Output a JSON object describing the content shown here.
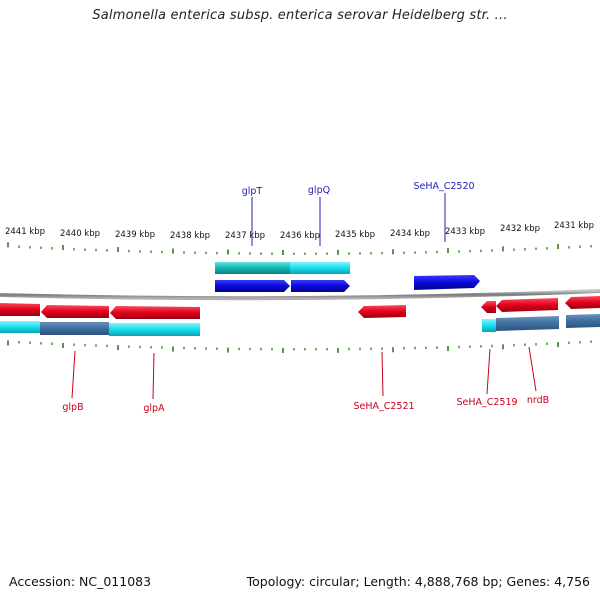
{
  "header": {
    "title": "Salmonella enterica subsp. enterica serovar Heidelberg str. ..."
  },
  "footer": {
    "accession": "Accession: NC_011083",
    "summary": "Topology: circular; Length: 4,888,768 bp; Genes: 4,756"
  },
  "colors": {
    "backbone": "#8c8c8c",
    "tick": "#2e7d1c",
    "forward_gene": "#0a0ad8",
    "forward_feature": "#16c4c4",
    "reverse_gene": "#e0001c",
    "reverse_feature": "#17dcec",
    "forward_label": "#1f22b8",
    "reverse_label": "#c8001c"
  },
  "scale": {
    "labels": [
      "2441 kbp",
      "2440 kbp",
      "2439 kbp",
      "2438 kbp",
      "2437 kbp",
      "2436 kbp",
      "2435 kbp",
      "2434 kbp",
      "2433 kbp",
      "2432 kbp",
      "2431 kbp"
    ]
  },
  "gene_labels": {
    "glpT": "glpT",
    "glpQ": "glpQ",
    "SeHA_C2520": "SeHA_C2520",
    "glpB": "glpB",
    "glpA": "glpA",
    "SeHA_C2521": "SeHA_C2521",
    "SeHA_C2519": "SeHA_C2519",
    "nrdB": "nrdB"
  }
}
